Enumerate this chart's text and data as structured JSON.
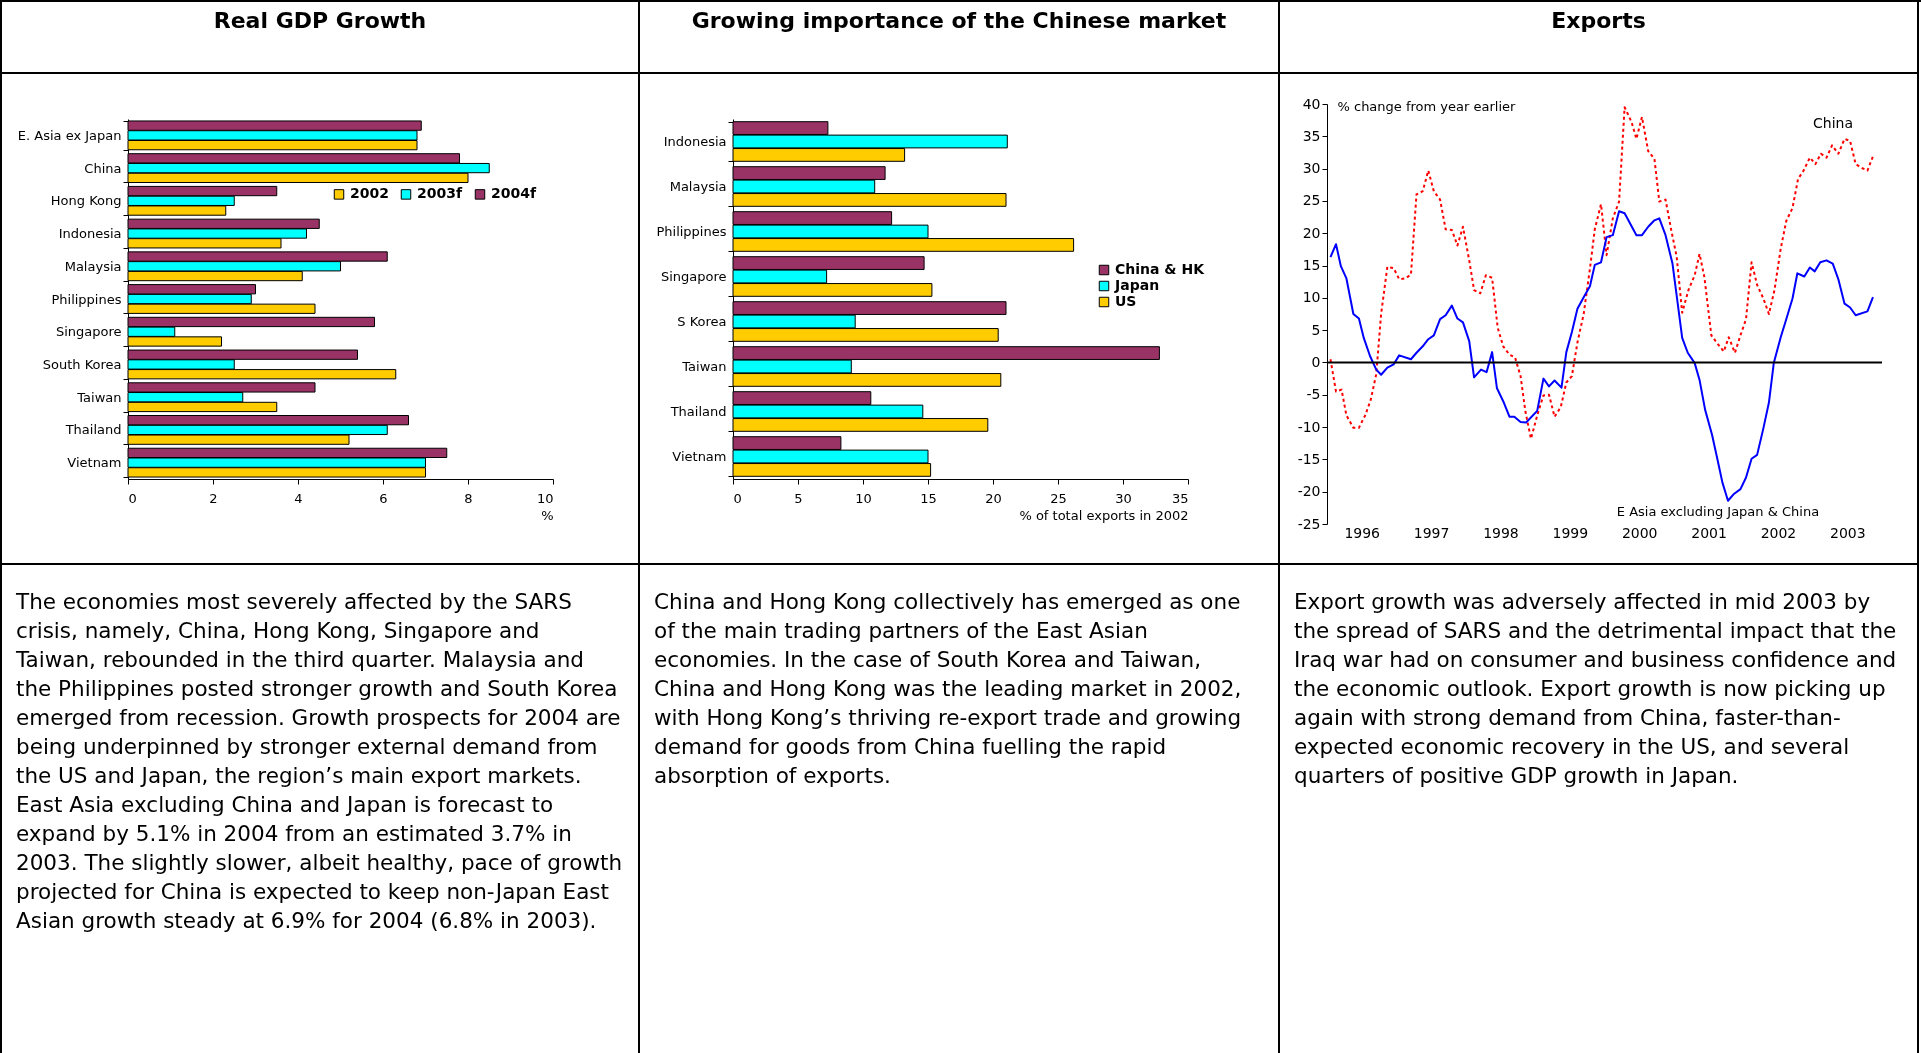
{
  "chart_data": [
    {
      "type": "bar",
      "title": "Real GDP Growth",
      "orientation": "horizontal",
      "xlabel": "%",
      "legend": "top right",
      "xlim": [
        0,
        10
      ],
      "xticks": [
        0,
        2,
        4,
        6,
        8,
        10
      ],
      "categories": [
        "E. Asia ex Japan",
        "China",
        "Hong Kong",
        "Indonesia",
        "Malaysia",
        "Philippines",
        "Singapore",
        "South Korea",
        "Taiwan",
        "Thailand",
        "Vietnam"
      ],
      "series": [
        {
          "name": "2002",
          "color": "#ffcc00",
          "values": [
            6.8,
            8.0,
            2.3,
            3.6,
            4.1,
            4.4,
            2.2,
            6.3,
            3.5,
            5.2,
            7.0
          ]
        },
        {
          "name": "2003f",
          "color": "#00ffff",
          "values": [
            6.8,
            8.5,
            2.5,
            4.2,
            5.0,
            2.9,
            1.1,
            2.5,
            2.7,
            6.1,
            7.0
          ]
        },
        {
          "name": "2004f",
          "color": "#993366",
          "values": [
            6.9,
            7.8,
            3.5,
            4.5,
            6.1,
            3.0,
            5.8,
            5.4,
            4.4,
            6.6,
            7.5
          ]
        }
      ],
      "annotations": [
        "The economies most severely affected by the SARS crisis, namely, China, Hong Kong, Singapore and Taiwan, rebounded in the third quarter. Malaysia and the Philippines posted stronger growth and South Korea emerged from recession. Growth prospects for 2004 are being underpinned by stronger external demand from the US and Japan, the region’s main export markets. East Asia excluding China and Japan is forecast to expand by 5.1% in 2004 from an estimated 3.7% in 2003. The slightly slower, albeit healthy, pace of growth projected for China is expected to keep non-Japan East Asian growth steady at 6.9% for 2004 (6.8% in 2003)."
      ]
    },
    {
      "type": "bar",
      "title": "Growing importance of the Chinese market",
      "orientation": "horizontal",
      "xlabel": "% of total exports in 2002",
      "legend": "right",
      "xlim": [
        0,
        35
      ],
      "xticks": [
        0,
        5,
        10,
        15,
        20,
        25,
        30,
        35
      ],
      "categories": [
        "Indonesia",
        "Malaysia",
        "Philippines",
        "Singapore",
        "S Korea",
        "Taiwan",
        "Thailand",
        "Vietnam"
      ],
      "series": [
        {
          "name": "US",
          "color": "#ffcc00",
          "values": [
            13.2,
            21.0,
            26.2,
            15.3,
            20.4,
            20.6,
            19.6,
            15.2
          ]
        },
        {
          "name": "Japan",
          "color": "#00ffff",
          "values": [
            21.1,
            10.9,
            15.0,
            7.2,
            9.4,
            9.1,
            14.6,
            15.0
          ]
        },
        {
          "name": "China & HK",
          "color": "#993366",
          "values": [
            7.3,
            11.7,
            12.2,
            14.7,
            21.0,
            32.8,
            10.6,
            8.3
          ]
        }
      ],
      "annotations": [
        "China and Hong Kong collectively has emerged as one of the main trading partners of the East Asian economies. In the case of South Korea and Taiwan, China and Hong Kong was the leading market in 2002, with Hong Kong’s thriving re-export trade and growing demand for goods from China fuelling the rapid absorption of exports."
      ]
    },
    {
      "type": "line",
      "title": "Exports",
      "ylabel": "% change from year earlier",
      "xlim": [
        1996,
        2004
      ],
      "xticks": [
        {
          "value": 1996.5,
          "label": "1996"
        },
        {
          "value": 1997.5,
          "label": "1997"
        },
        {
          "value": 1998.5,
          "label": "1998"
        },
        {
          "value": 1999.5,
          "label": "1999"
        },
        {
          "value": 2000.5,
          "label": "2000"
        },
        {
          "value": 2001.5,
          "label": "2001"
        },
        {
          "value": 2002.5,
          "label": "2002"
        },
        {
          "value": 2003.5,
          "label": "2003"
        }
      ],
      "ylim": [
        -25,
        40
      ],
      "yticks": [
        -25,
        -20,
        -15,
        -10,
        -5,
        0,
        5,
        10,
        15,
        20,
        25,
        30,
        35,
        40
      ],
      "ref_lines": [
        {
          "axis": "y",
          "value": 0,
          "color": "#000000"
        }
      ],
      "series": [
        {
          "name": "China",
          "color": "#ff0000",
          "line_style": "dotted",
          "x": [
            1996.05,
            1996.13,
            1996.21,
            1996.28,
            1996.38,
            1996.46,
            1996.55,
            1996.63,
            1996.71,
            1996.78,
            1996.87,
            1996.96,
            1997.04,
            1997.13,
            1997.21,
            1997.29,
            1997.38,
            1997.46,
            1997.54,
            1997.63,
            1997.71,
            1997.8,
            1997.88,
            1997.96,
            1998.05,
            1998.12,
            1998.21,
            1998.29,
            1998.38,
            1998.46,
            1998.54,
            1998.63,
            1998.71,
            1998.79,
            1998.86,
            1998.94,
            1999.03,
            1999.12,
            1999.2,
            1999.28,
            1999.37,
            1999.45,
            1999.53,
            1999.61,
            1999.7,
            1999.79,
            1999.86,
            1999.95,
            2000.03,
            2000.12,
            2000.21,
            2000.29,
            2000.39,
            2000.46,
            2000.54,
            2000.63,
            2000.72,
            2000.79,
            2000.88,
            2000.96,
            2001.04,
            2001.12,
            2001.21,
            2001.3,
            2001.37,
            2001.44,
            2001.54,
            2001.63,
            2001.72,
            2001.79,
            2001.88,
            2001.96,
            2002.04,
            2002.12,
            2002.2,
            2002.29,
            2002.37,
            2002.45,
            2002.54,
            2002.62,
            2002.71,
            2002.79,
            2002.87,
            2002.96,
            2003.04,
            2003.12,
            2003.2,
            2003.28,
            2003.37,
            2003.46,
            2003.54,
            2003.62,
            2003.71,
            2003.79,
            2003.87
          ],
          "values": [
            0.5,
            -4.5,
            -4.2,
            -8.2,
            -10.1,
            -10.1,
            -8.2,
            -5.8,
            -1.8,
            7.5,
            14.8,
            14.6,
            12.9,
            13.0,
            13.6,
            26.0,
            26.5,
            29.7,
            26.5,
            25.2,
            20.6,
            20.5,
            18.1,
            21.0,
            15.8,
            11.2,
            10.7,
            13.5,
            13.1,
            5.4,
            2.5,
            1.2,
            0.8,
            -2.1,
            -7.6,
            -11.8,
            -8.2,
            -5.1,
            -5.0,
            -8.4,
            -6.9,
            -3.1,
            -2.1,
            3.1,
            7.5,
            14.5,
            20.6,
            24.5,
            16.6,
            22.3,
            24.9,
            39.5,
            37.2,
            34.6,
            38.0,
            32.7,
            31.5,
            24.9,
            25.2,
            20.6,
            16.4,
            7.7,
            11.2,
            13.5,
            16.8,
            13.2,
            4.2,
            2.9,
            1.7,
            3.9,
            1.5,
            4.2,
            6.7,
            15.5,
            12.0,
            9.9,
            7.5,
            11.2,
            17.6,
            21.9,
            23.9,
            28.4,
            29.7,
            31.7,
            30.7,
            32.3,
            31.7,
            33.6,
            32.3,
            34.6,
            34.3,
            30.7,
            30.1,
            29.7,
            31.9
          ]
        },
        {
          "name": "E Asia excluding Japan & China",
          "color": "#0000ff",
          "line_style": "solid",
          "x": [
            1996.05,
            1996.13,
            1996.2,
            1996.28,
            1996.38,
            1996.46,
            1996.53,
            1996.62,
            1996.71,
            1996.78,
            1996.87,
            1996.96,
            1997.04,
            1997.21,
            1997.29,
            1997.38,
            1997.46,
            1997.54,
            1997.63,
            1997.71,
            1997.8,
            1997.88,
            1997.96,
            1998.05,
            1998.12,
            1998.22,
            1998.3,
            1998.38,
            1998.45,
            1998.54,
            1998.63,
            1998.7,
            1998.79,
            1998.87,
            1999.03,
            1999.12,
            1999.2,
            1999.28,
            1999.38,
            1999.45,
            1999.53,
            1999.61,
            1999.7,
            1999.79,
            1999.86,
            1999.95,
            2000.03,
            2000.12,
            2000.21,
            2000.29,
            2000.46,
            2000.54,
            2000.63,
            2000.72,
            2000.79,
            2000.88,
            2000.98,
            2001.12,
            2001.2,
            2001.3,
            2001.37,
            2001.45,
            2001.55,
            2001.63,
            2001.7,
            2001.78,
            2001.86,
            2001.96,
            2002.04,
            2002.12,
            2002.2,
            2002.29,
            2002.37,
            2002.44,
            2002.54,
            2002.62,
            2002.71,
            2002.78,
            2002.88,
            2002.96,
            2003.03,
            2003.11,
            2003.2,
            2003.29,
            2003.37,
            2003.46,
            2003.54,
            2003.62,
            2003.79,
            2003.87
          ],
          "values": [
            16.3,
            18.3,
            14.9,
            13.0,
            7.5,
            6.8,
            3.8,
            1.0,
            -1.1,
            -1.9,
            -0.8,
            -0.3,
            1.1,
            0.5,
            1.5,
            2.5,
            3.6,
            4.2,
            6.7,
            7.3,
            8.8,
            6.8,
            6.2,
            3.3,
            -2.3,
            -1.1,
            -1.5,
            1.6,
            -4.0,
            -6.0,
            -8.4,
            -8.4,
            -9.2,
            -9.3,
            -7.5,
            -2.5,
            -3.7,
            -2.8,
            -3.9,
            1.6,
            4.7,
            8.3,
            10.1,
            11.8,
            15.1,
            15.5,
            19.4,
            19.7,
            23.4,
            23.1,
            19.7,
            19.7,
            21.0,
            22.0,
            22.3,
            19.7,
            15.3,
            3.8,
            1.5,
            -0.1,
            -2.7,
            -7.3,
            -11.2,
            -15.1,
            -18.6,
            -21.4,
            -20.4,
            -19.6,
            -17.8,
            -14.9,
            -14.3,
            -10.2,
            -6.2,
            -0.1,
            3.9,
            6.7,
            9.9,
            13.8,
            13.3,
            14.7,
            14.1,
            15.5,
            15.8,
            15.3,
            12.9,
            9.1,
            8.5,
            7.3,
            7.9,
            10.1
          ]
        }
      ],
      "annotations": [
        "Export growth was adversely affected in mid 2003 by the spread of SARS and the detrimental impact that the Iraq war had on consumer and business confidence and the economic outlook. Export growth is now picking up again with strong demand from China, faster-than-expected economic recovery in the US, and several quarters of positive GDP growth in Japan."
      ]
    }
  ]
}
